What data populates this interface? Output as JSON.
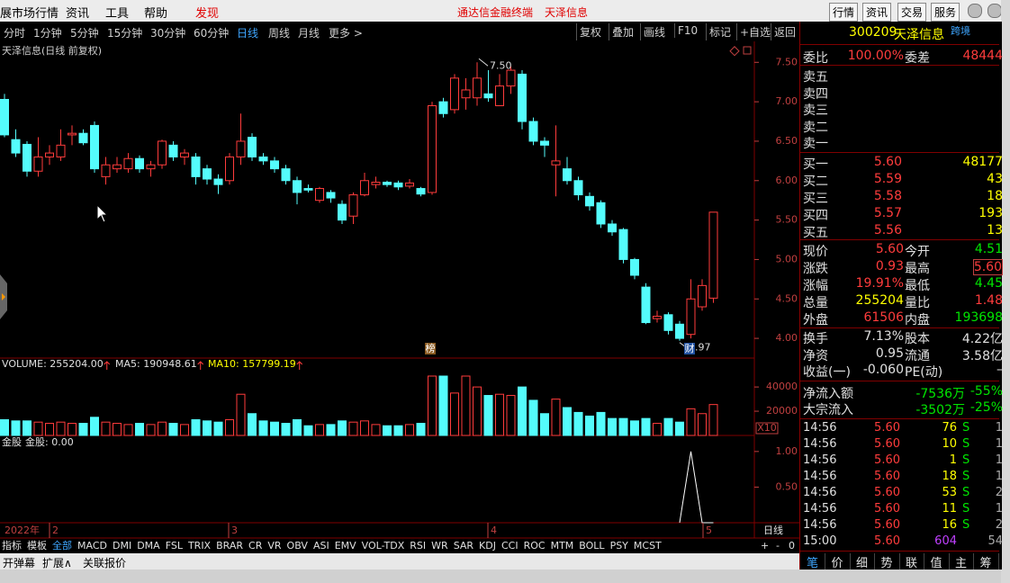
{
  "menu": {
    "left": [
      "展市场行情",
      "资讯",
      "工具",
      "帮助"
    ],
    "discover": "发现",
    "center": [
      "通达信金融终端",
      "天泽信息"
    ],
    "right": [
      "行情",
      "资讯",
      "交易",
      "服务"
    ]
  },
  "toolbar": {
    "periods": [
      "分时",
      "1分钟",
      "5分钟",
      "15分钟",
      "30分钟",
      "60分钟",
      "日线",
      "周线",
      "月线",
      "更多 >"
    ],
    "tools": [
      "复权",
      "叠加",
      "画线",
      "F10",
      "标记",
      "+自选",
      "返回"
    ]
  },
  "kline": {
    "title": "天泽信息(日线 前复权)",
    "ylim": [
      3.75,
      7.72
    ],
    "yticks": [
      {
        "value": 7.5,
        "label": "7.50"
      },
      {
        "value": 7,
        "label": "7.00"
      },
      {
        "value": 6.5,
        "label": "6.50"
      },
      {
        "value": 6,
        "label": "6.00"
      },
      {
        "value": 5.5,
        "label": "5.50"
      },
      {
        "value": 5,
        "label": "5.00"
      },
      {
        "value": 4.5,
        "label": "4.50"
      },
      {
        "value": 4,
        "label": "4.00"
      }
    ],
    "open": [
      7.03,
      6.52,
      6.46,
      6.12,
      6.3,
      6.3,
      6.58,
      6.6,
      6.7,
      6.05,
      6.15,
      6.15,
      6.28,
      6.15,
      6.2,
      6.45,
      6.3,
      6.3,
      6.15,
      6.02,
      6.0,
      6.3,
      6.55,
      6.3,
      6.25,
      6.15,
      6.0,
      5.9,
      5.75,
      5.85,
      5.7,
      5.55,
      5.82,
      5.95,
      5.98,
      5.97,
      5.93,
      5.9,
      5.85,
      7.0,
      6.9,
      7.05,
      7.05,
      7.1,
      6.95,
      7.2,
      7.35,
      6.75,
      6.5,
      6.2,
      6.15,
      6.0,
      5.8,
      5.72,
      5.45,
      5.38,
      5.0,
      4.65,
      4.25,
      4.3,
      4.18,
      4.05,
      4.4,
      4.51
    ],
    "close": [
      6.58,
      6.35,
      6.12,
      6.3,
      6.35,
      6.45,
      6.6,
      6.48,
      6.15,
      6.2,
      6.2,
      6.28,
      6.15,
      6.2,
      6.5,
      6.3,
      6.35,
      6.05,
      6.02,
      5.95,
      6.3,
      6.5,
      6.3,
      6.25,
      6.15,
      6.0,
      5.85,
      5.88,
      5.9,
      5.78,
      5.5,
      5.82,
      6.0,
      5.98,
      5.95,
      5.92,
      5.97,
      5.83,
      6.95,
      6.85,
      7.3,
      7.15,
      7.3,
      7.05,
      7.2,
      7.4,
      6.75,
      6.5,
      6.45,
      6.25,
      6.0,
      5.82,
      5.68,
      5.45,
      5.35,
      5.0,
      4.8,
      4.2,
      4.28,
      4.1,
      4.0,
      4.5,
      4.67,
      5.6
    ],
    "high": [
      7.1,
      6.65,
      6.5,
      6.55,
      6.45,
      6.65,
      6.7,
      6.65,
      6.75,
      6.3,
      6.3,
      6.35,
      6.32,
      6.25,
      6.52,
      6.5,
      6.4,
      6.35,
      6.2,
      6.08,
      6.35,
      6.85,
      6.6,
      6.35,
      6.3,
      6.2,
      6.05,
      5.95,
      5.92,
      5.88,
      5.75,
      5.85,
      6.1,
      6.05,
      6.0,
      6.0,
      6.02,
      5.92,
      7.0,
      7.05,
      7.35,
      7.3,
      7.5,
      7.4,
      7.35,
      7.45,
      7.4,
      6.8,
      6.55,
      6.7,
      6.3,
      6.05,
      5.85,
      5.75,
      5.5,
      5.4,
      5.02,
      4.7,
      4.35,
      4.33,
      4.22,
      4.75,
      4.75,
      5.6
    ],
    "low": [
      6.55,
      6.3,
      6.05,
      6.05,
      6.2,
      6.25,
      6.45,
      6.45,
      6.1,
      5.95,
      6.1,
      6.1,
      6.1,
      6.05,
      6.15,
      6.25,
      6.2,
      5.95,
      5.95,
      5.83,
      5.95,
      6.2,
      6.25,
      6.2,
      6.1,
      5.95,
      5.7,
      5.85,
      5.72,
      5.72,
      5.45,
      5.45,
      5.8,
      5.9,
      5.92,
      5.88,
      5.9,
      5.8,
      5.82,
      6.8,
      6.85,
      6.9,
      6.95,
      7.0,
      6.95,
      7.1,
      6.65,
      6.45,
      6.3,
      5.8,
      5.95,
      5.75,
      5.62,
      5.4,
      5.3,
      4.95,
      4.75,
      4.18,
      4.2,
      4.05,
      3.97,
      4.0,
      4.35,
      4.45
    ],
    "annotations": [
      "7.50",
      "3.97"
    ],
    "badges": [
      "榜",
      "财"
    ],
    "xlabels": [
      "2022年",
      "2",
      "3",
      "4",
      "5"
    ],
    "period": "日线"
  },
  "volume": {
    "header": [
      "VOLUME: 255204.00",
      "MA5: 190948.61",
      "MA10: 157799.19"
    ],
    "unit": "X10",
    "ylim": [
      0,
      49000
    ],
    "yticks": [
      20000,
      40000
    ],
    "values": [
      13000,
      12000,
      12000,
      11000,
      10000,
      11000,
      10000,
      10000,
      15000,
      11000,
      10000,
      9000,
      10000,
      9000,
      11000,
      10000,
      9000,
      13000,
      12000,
      11000,
      13000,
      34000,
      18000,
      12000,
      11000,
      10000,
      13000,
      8000,
      9000,
      9000,
      12000,
      11000,
      12000,
      9000,
      8000,
      8000,
      9000,
      10000,
      49000,
      49000,
      35000,
      49000,
      40000,
      33000,
      34000,
      33000,
      40000,
      29000,
      18000,
      30000,
      23000,
      19000,
      16000,
      19000,
      14000,
      14000,
      12000,
      14000,
      10000,
      14000,
      11000,
      22000,
      18000,
      25500
    ]
  },
  "indicator": {
    "name": "金股",
    "header": "金股: 0.00",
    "ylim": [
      0,
      1.2
    ],
    "yticks": [
      {
        "value": 0.5,
        "label": "0.50"
      },
      {
        "value": 1,
        "label": "1.00"
      }
    ],
    "values": [
      null,
      null,
      null,
      null,
      null,
      null,
      null,
      null,
      null,
      null,
      null,
      null,
      null,
      null,
      null,
      null,
      null,
      null,
      null,
      null,
      null,
      null,
      null,
      null,
      null,
      null,
      null,
      null,
      null,
      null,
      null,
      null,
      null,
      null,
      null,
      null,
      null,
      null,
      null,
      null,
      null,
      null,
      null,
      null,
      null,
      null,
      null,
      null,
      null,
      null,
      null,
      null,
      null,
      null,
      null,
      null,
      null,
      null,
      null,
      null,
      0,
      1,
      0,
      0
    ]
  },
  "tabs": {
    "items": [
      "指标",
      "模板",
      "全部",
      "MACD",
      "DMI",
      "DMA",
      "FSL",
      "TRIX",
      "BRAR",
      "CR",
      "VR",
      "OBV",
      "ASI",
      "EMV",
      "VOL-TDX",
      "RSI",
      "WR",
      "SAR",
      "KDJ",
      "CCI",
      "ROC",
      "MTM",
      "BOLL",
      "PSY",
      "MCST"
    ],
    "zoom": [
      "+",
      "-",
      "0"
    ]
  },
  "status": [
    "开弹幕",
    "扩展∧",
    "关联报价"
  ],
  "quote": {
    "code": "300209",
    "name": "天泽信息",
    "tag": "跨境",
    "ratio": [
      "委比",
      "100.00%",
      "委差",
      "48444"
    ],
    "sell": [
      "卖五",
      "卖四",
      "卖三",
      "卖二",
      "卖一"
    ],
    "buy": [
      [
        "买一",
        "5.60",
        "48177"
      ],
      [
        "买二",
        "5.59",
        "43"
      ],
      [
        "买三",
        "5.58",
        "18"
      ],
      [
        "买四",
        "5.57",
        "193"
      ],
      [
        "买五",
        "5.56",
        "13"
      ]
    ],
    "stats": [
      [
        "现价",
        "5.60",
        "今开",
        "4.51"
      ],
      [
        "涨跌",
        "0.93",
        "最高",
        "5.60"
      ],
      [
        "涨幅",
        "19.91%",
        "最低",
        "4.45"
      ],
      [
        "总量",
        "255204",
        "量比",
        "1.48"
      ],
      [
        "外盘",
        "61506",
        "内盘",
        "193698"
      ],
      [
        "换手",
        "7.13%",
        "股本",
        "4.22亿"
      ],
      [
        "净资",
        "0.95",
        "流通",
        "3.58亿"
      ],
      [
        "收益(一)",
        "-0.060",
        "PE(动)",
        "–"
      ]
    ],
    "flows": [
      [
        "净流入额",
        "-7536万",
        "-55%"
      ],
      [
        "大宗流入",
        "-3502万",
        "-25%"
      ]
    ],
    "ticks": [
      [
        "14:56",
        "5.60",
        "76",
        "S",
        "1"
      ],
      [
        "14:56",
        "5.60",
        "10",
        "S",
        "1"
      ],
      [
        "14:56",
        "5.60",
        "1",
        "S",
        "1"
      ],
      [
        "14:56",
        "5.60",
        "18",
        "S",
        "1"
      ],
      [
        "14:56",
        "5.60",
        "53",
        "S",
        "2"
      ],
      [
        "14:56",
        "5.60",
        "11",
        "S",
        "1"
      ],
      [
        "14:56",
        "5.60",
        "16",
        "S",
        "2"
      ],
      [
        "15:00",
        "5.60",
        "604",
        "54"
      ]
    ],
    "tabs": [
      "笔",
      "价",
      "细",
      "势",
      "联",
      "值",
      "主",
      "筹"
    ]
  }
}
